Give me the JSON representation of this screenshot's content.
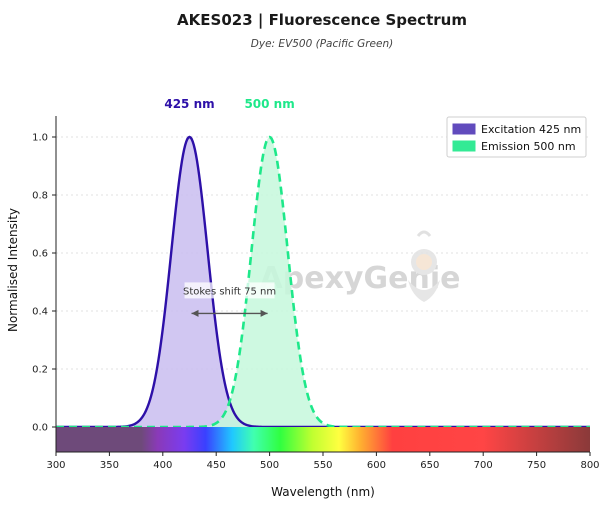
{
  "chart_data": {
    "type": "area",
    "title": "AKES023  |  Fluorescence Spectrum",
    "subtitle": "Dye: EV500 (Pacific Green)",
    "xlabel": "Wavelength (nm)",
    "ylabel": "Normalised Intensity",
    "xlim": [
      300,
      800
    ],
    "ylim": [
      -0.03,
      1.08
    ],
    "x_ticks": [
      300,
      350,
      400,
      450,
      500,
      550,
      600,
      650,
      700,
      750,
      800
    ],
    "y_ticks": [
      0.0,
      0.2,
      0.4,
      0.6,
      0.8,
      1.0
    ],
    "y_tick_labels": [
      "0.0",
      "0.2",
      "0.4",
      "0.6",
      "0.8",
      "1.0"
    ],
    "grid": "horizontal dashed",
    "legend_position": "top-right",
    "series": [
      {
        "name": "Excitation  425 nm",
        "peak_nm": 425,
        "peak_label": "425 nm",
        "color": "#2d10a8",
        "fill": "#c9bdf0",
        "line": "solid",
        "x": [
          330,
          350,
          370,
          380,
          390,
          400,
          405,
          410,
          415,
          420,
          425,
          430,
          435,
          440,
          445,
          450,
          460,
          470,
          480,
          500,
          520
        ],
        "y": [
          0.0,
          0.002,
          0.03,
          0.09,
          0.23,
          0.45,
          0.57,
          0.72,
          0.86,
          0.96,
          1.0,
          0.96,
          0.86,
          0.72,
          0.57,
          0.45,
          0.23,
          0.09,
          0.03,
          0.002,
          0.0
        ]
      },
      {
        "name": "Emission  500 nm",
        "peak_nm": 500,
        "peak_label": "500 nm",
        "color": "#1ee88a",
        "fill": "#c6f8dc",
        "line": "dashed",
        "x": [
          405,
          425,
          445,
          455,
          465,
          475,
          480,
          485,
          490,
          495,
          500,
          505,
          510,
          515,
          520,
          525,
          535,
          545,
          555,
          575,
          595
        ],
        "y": [
          0.0,
          0.002,
          0.03,
          0.09,
          0.23,
          0.45,
          0.57,
          0.72,
          0.86,
          0.96,
          1.0,
          0.96,
          0.86,
          0.72,
          0.57,
          0.45,
          0.23,
          0.09,
          0.03,
          0.002,
          0.0
        ]
      }
    ],
    "annotations": [
      {
        "text": "Stokes shift  75 nm",
        "from_nm": 425,
        "to_nm": 500,
        "y": 0.44
      }
    ],
    "watermark": "ApexyGenie",
    "spectrum_bar": true
  },
  "colors": {
    "excitation_line": "#2d10a8",
    "emission_line": "#1ee88a",
    "axis": "#222222",
    "grid": "#d8d8d8"
  }
}
